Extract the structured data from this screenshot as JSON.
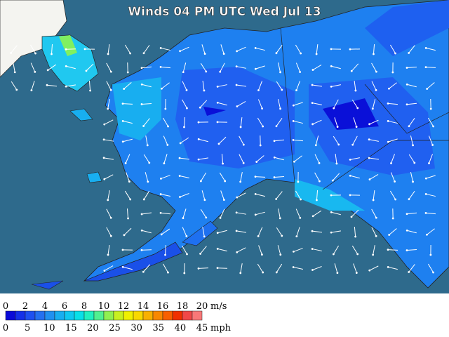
{
  "title": "Winds 04 PM UTC Wed Jul 13",
  "legend": {
    "colors": [
      "#0a0ad8",
      "#1430e8",
      "#1e50f0",
      "#2470f0",
      "#2090f0",
      "#18aef0",
      "#10c8f0",
      "#08e0e8",
      "#20f0c0",
      "#50f090",
      "#90f050",
      "#c8f020",
      "#f0f000",
      "#f8d800",
      "#f8b000",
      "#f88800",
      "#f86000",
      "#f03000",
      "#f04848",
      "#f87878"
    ],
    "ms_ticks": [
      0,
      2,
      4,
      6,
      8,
      10,
      12,
      14,
      16,
      18,
      20
    ],
    "ms_unit": "m/s",
    "mph_ticks": [
      0,
      5,
      10,
      15,
      20,
      25,
      30,
      35,
      40,
      45
    ],
    "mph_unit": "mph"
  }
}
